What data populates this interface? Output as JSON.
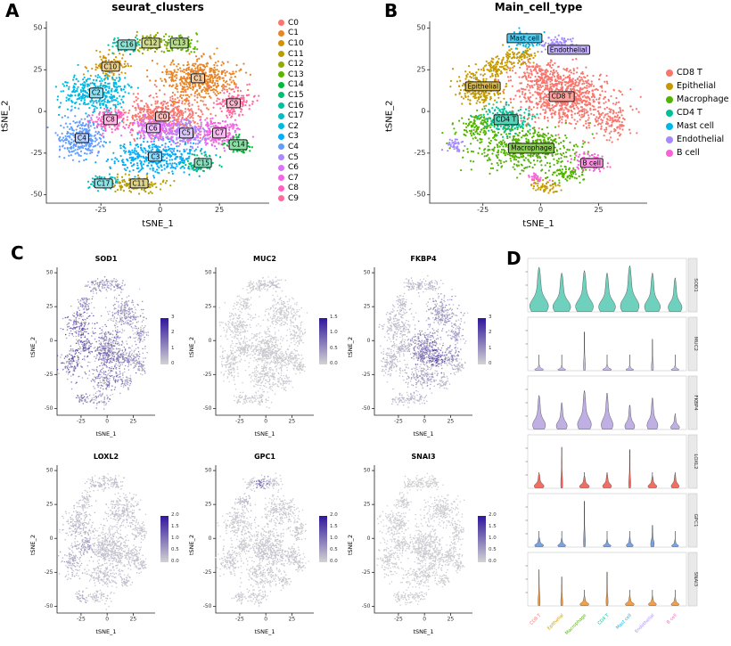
{
  "panel_labels": {
    "a": "A",
    "b": "B",
    "c": "C",
    "d": "D"
  },
  "chart_data": [
    {
      "id": "A",
      "type": "scatter",
      "title": "seurat_clusters",
      "xlabel": "tSNE_1",
      "ylabel": "tSNE_2",
      "xlim": [
        -48,
        46
      ],
      "ylim": [
        -55,
        54
      ],
      "xticks": [
        -25,
        0,
        25
      ],
      "yticks": [
        -50,
        -25,
        0,
        25,
        50
      ],
      "legend": [
        {
          "label": "C0",
          "color": "#F8766D"
        },
        {
          "label": "C1",
          "color": "#E88526"
        },
        {
          "label": "C10",
          "color": "#D39200"
        },
        {
          "label": "C11",
          "color": "#B79F00"
        },
        {
          "label": "C12",
          "color": "#93AA00"
        },
        {
          "label": "C13",
          "color": "#5EB300"
        },
        {
          "label": "C14",
          "color": "#00BA38"
        },
        {
          "label": "C15",
          "color": "#00BF74"
        },
        {
          "label": "C16",
          "color": "#00C19F"
        },
        {
          "label": "C17",
          "color": "#00BFC4"
        },
        {
          "label": "C2",
          "color": "#00B9E3"
        },
        {
          "label": "C3",
          "color": "#00ADFA"
        },
        {
          "label": "C4",
          "color": "#619CFF"
        },
        {
          "label": "C5",
          "color": "#AE87FF"
        },
        {
          "label": "C6",
          "color": "#DB72FB"
        },
        {
          "label": "C7",
          "color": "#F564E3"
        },
        {
          "label": "C8",
          "color": "#FF61C3"
        },
        {
          "label": "C9",
          "color": "#FF699C"
        }
      ],
      "clusters": [
        {
          "name": "C0",
          "color": "#F8766D",
          "cx": 1,
          "cy": -3,
          "sdx": 8,
          "sdy": 6,
          "n": 500
        },
        {
          "name": "C1",
          "color": "#E88526",
          "cx": 16,
          "cy": 20,
          "sdx": 8,
          "sdy": 6,
          "n": 500
        },
        {
          "name": "C2",
          "color": "#00B9E3",
          "cx": -27,
          "cy": 11,
          "sdx": 7,
          "sdy": 6,
          "n": 400
        },
        {
          "name": "C3",
          "color": "#00ADFA",
          "cx": -2,
          "cy": -27,
          "sdx": 9,
          "sdy": 5,
          "n": 400
        },
        {
          "name": "C4",
          "color": "#619CFF",
          "cx": -33,
          "cy": -16,
          "sdx": 5,
          "sdy": 6,
          "n": 300
        },
        {
          "name": "C5",
          "color": "#AE87FF",
          "cx": 11,
          "cy": -13,
          "sdx": 4.5,
          "sdy": 4,
          "n": 220
        },
        {
          "name": "C6",
          "color": "#DB72FB",
          "cx": -3,
          "cy": -10,
          "sdx": 4.5,
          "sdy": 3.5,
          "n": 220
        },
        {
          "name": "C7",
          "color": "#F564E3",
          "cx": 25,
          "cy": -13,
          "sdx": 4.5,
          "sdy": 4,
          "n": 220
        },
        {
          "name": "C8",
          "color": "#FF61C3",
          "cx": -21,
          "cy": -5,
          "sdx": 3.5,
          "sdy": 3,
          "n": 160
        },
        {
          "name": "C9",
          "color": "#FF699C",
          "cx": 31,
          "cy": 5,
          "sdx": 3.5,
          "sdy": 4,
          "n": 160
        },
        {
          "name": "C10",
          "color": "#D39200",
          "cx": -21,
          "cy": 27,
          "sdx": 3.5,
          "sdy": 3,
          "n": 130
        },
        {
          "name": "C11",
          "color": "#B79F00",
          "cx": -9,
          "cy": -43,
          "sdx": 6,
          "sdy": 2.5,
          "n": 140
        },
        {
          "name": "C12",
          "color": "#93AA00",
          "cx": -4,
          "cy": 41,
          "sdx": 3.5,
          "sdy": 2.5,
          "n": 110
        },
        {
          "name": "C13",
          "color": "#5EB300",
          "cx": 8,
          "cy": 41,
          "sdx": 4,
          "sdy": 2.5,
          "n": 110
        },
        {
          "name": "C14",
          "color": "#00BA38",
          "cx": 33,
          "cy": -20,
          "sdx": 2.5,
          "sdy": 2.5,
          "n": 90
        },
        {
          "name": "C15",
          "color": "#00BF74",
          "cx": 18,
          "cy": -31,
          "sdx": 3,
          "sdy": 2.5,
          "n": 90
        },
        {
          "name": "C16",
          "color": "#00C19F",
          "cx": -14,
          "cy": 40,
          "sdx": 3,
          "sdy": 2.2,
          "n": 80
        },
        {
          "name": "C17",
          "color": "#00BFC4",
          "cx": -24,
          "cy": -43,
          "sdx": 3,
          "sdy": 2,
          "n": 80
        }
      ]
    },
    {
      "id": "B",
      "type": "scatter",
      "title": "Main_cell_type",
      "xlabel": "tSNE_1",
      "ylabel": "tSNE_2",
      "xlim": [
        -48,
        46
      ],
      "ylim": [
        -55,
        54
      ],
      "xticks": [
        -25,
        0,
        25
      ],
      "yticks": [
        -50,
        -25,
        0,
        25,
        50
      ],
      "legend": [
        {
          "label": "CD8 T",
          "color": "#F8766D"
        },
        {
          "label": "Epithelial",
          "color": "#C49A00"
        },
        {
          "label": "Macrophage",
          "color": "#53B400"
        },
        {
          "label": "CD4 T",
          "color": "#00C094"
        },
        {
          "label": "Mast cell",
          "color": "#00B6EB"
        },
        {
          "label": "Endothelial",
          "color": "#A58AFF"
        },
        {
          "label": "B cell",
          "color": "#FB61D7"
        }
      ],
      "clusters": [
        {
          "name": "CD8 T",
          "color": "#F8766D",
          "cx": 10,
          "cy": 9,
          "sdx": 10,
          "sdy": 8,
          "n": 750
        },
        {
          "name": "CD8 T",
          "color": "#F8766D",
          "cx": 30,
          "cy": -6,
          "sdx": 4,
          "sdy": 5,
          "n": 120
        },
        {
          "name": "CD8 T",
          "color": "#F8766D",
          "cx": 0,
          "cy": 22,
          "sdx": 6,
          "sdy": 4,
          "n": 150
        },
        {
          "name": "Epithelial",
          "color": "#C49A00",
          "cx": -26,
          "cy": 14,
          "sdx": 5,
          "sdy": 5,
          "n": 260
        },
        {
          "name": "Epithelial",
          "color": "#C49A00",
          "cx": -9,
          "cy": 33,
          "sdx": 4,
          "sdy": 2.5,
          "n": 90
        },
        {
          "name": "Epithelial",
          "color": "#C49A00",
          "cx": -20,
          "cy": 27,
          "sdx": 3,
          "sdy": 2.5,
          "n": 80
        },
        {
          "name": "Epithelial",
          "color": "#C49A00",
          "cx": 2,
          "cy": -45,
          "sdx": 4,
          "sdy": 2,
          "n": 60
        },
        {
          "name": "Macrophage",
          "color": "#53B400",
          "cx": -6,
          "cy": -22,
          "sdx": 11,
          "sdy": 6,
          "n": 520
        },
        {
          "name": "Macrophage",
          "color": "#53B400",
          "cx": -27,
          "cy": -8,
          "sdx": 4,
          "sdy": 4,
          "n": 120
        },
        {
          "name": "Macrophage",
          "color": "#53B400",
          "cx": 12,
          "cy": -37,
          "sdx": 4,
          "sdy": 2.5,
          "n": 80
        },
        {
          "name": "CD4 T",
          "color": "#00C094",
          "cx": -15,
          "cy": -5,
          "sdx": 5,
          "sdy": 4,
          "n": 230
        },
        {
          "name": "Mast cell",
          "color": "#00B6EB",
          "cx": -7,
          "cy": 43,
          "sdx": 3.5,
          "sdy": 2.5,
          "n": 90
        },
        {
          "name": "Endothelial",
          "color": "#A58AFF",
          "cx": 8,
          "cy": 40,
          "sdx": 4,
          "sdy": 2.5,
          "n": 100
        },
        {
          "name": "Endothelial",
          "color": "#A58AFF",
          "cx": -37,
          "cy": -20,
          "sdx": 2,
          "sdy": 2,
          "n": 40
        },
        {
          "name": "B cell",
          "color": "#FB61D7",
          "cx": 22,
          "cy": -30,
          "sdx": 3.5,
          "sdy": 3,
          "n": 100
        },
        {
          "name": "B cell",
          "color": "#FB61D7",
          "cx": -2,
          "cy": -40,
          "sdx": 2,
          "sdy": 1.5,
          "n": 30
        }
      ],
      "labels": [
        {
          "text": "Mast cell",
          "x": -7,
          "y": 44,
          "color": "#00B6EB"
        },
        {
          "text": "Endothelial",
          "x": 12,
          "y": 37,
          "color": "#A58AFF"
        },
        {
          "text": "Epithelial",
          "x": -25,
          "y": 15,
          "color": "#C49A00"
        },
        {
          "text": "CD8 T",
          "x": 9,
          "y": 9,
          "color": "#F8766D"
        },
        {
          "text": "CD4 T",
          "x": -15,
          "y": -5,
          "color": "#00C094"
        },
        {
          "text": "Macrophage",
          "x": -4,
          "y": -22,
          "color": "#53B400"
        },
        {
          "text": "B cell",
          "x": 22,
          "y": -31,
          "color": "#FB61D7"
        }
      ]
    },
    {
      "id": "C",
      "type": "feature-grid",
      "xlabel": "tSNE_1",
      "ylabel": "tSNE_2",
      "xticks": [
        -25,
        0,
        25
      ],
      "yticks": [
        -50,
        -25,
        0,
        25,
        50
      ],
      "gradient_low": "#D3D3D3",
      "gradient_high": "#30169B",
      "genes": [
        {
          "name": "SOD1",
          "colorbar_ticks": [
            "3",
            "2",
            "1",
            "0"
          ],
          "expression": {
            "default": 0.35,
            "C0": 0.55,
            "C2": 0.75,
            "C3": 0.5,
            "C4": 0.75,
            "C5": 0.5,
            "C6": 0.55,
            "C8": 0.7,
            "C16": 0.45,
            "C17": 0.55,
            "C10": 0.45
          }
        },
        {
          "name": "MUC2",
          "colorbar_ticks": [
            "1.5",
            "1.0",
            "0.5",
            "0.0"
          ],
          "expression": {
            "default": 0.03,
            "C13": 0.08,
            "C12": 0.05
          }
        },
        {
          "name": "FKBP4",
          "colorbar_ticks": [
            "3",
            "2",
            "1",
            "0"
          ],
          "expression": {
            "default": 0.12,
            "C0": 0.45,
            "C5": 0.85,
            "C6": 0.5,
            "C1": 0.3,
            "C7": 0.4,
            "C3": 0.25,
            "C9": 0.3
          }
        },
        {
          "name": "LOXL2",
          "colorbar_ticks": [
            "2.0",
            "1.5",
            "1.0",
            "0.5",
            "0.0"
          ],
          "expression": {
            "default": 0.07,
            "C8": 0.28,
            "C4": 0.18,
            "C17": 0.22,
            "C2": 0.12
          }
        },
        {
          "name": "GPC1",
          "colorbar_ticks": [
            "2.0",
            "1.5",
            "1.0",
            "0.5",
            "0.0"
          ],
          "expression": {
            "default": 0.04,
            "C12": 0.6,
            "C10": 0.12
          }
        },
        {
          "name": "SNAI3",
          "colorbar_ticks": [
            "2.0",
            "1.5",
            "1.0",
            "0.5",
            "0.0"
          ],
          "expression": {
            "default": 0.02
          }
        }
      ]
    },
    {
      "id": "D",
      "type": "violin-stack",
      "categories": [
        "CD8 T",
        "Epithelial",
        "Macrophage",
        "CD4 T",
        "Mast cell",
        "Endothelial",
        "B cell"
      ],
      "category_colors": [
        "#F8766D",
        "#C49A00",
        "#53B400",
        "#00C094",
        "#00B6EB",
        "#A58AFF",
        "#FB61D7"
      ],
      "rows": [
        {
          "gene": "SOD1",
          "color": "#6FD1BD",
          "heights": [
            0.92,
            0.8,
            0.85,
            0.8,
            0.95,
            0.8,
            0.7
          ],
          "widths": [
            0.95,
            0.9,
            0.9,
            0.85,
            0.95,
            0.8,
            0.7
          ]
        },
        {
          "gene": "MUC2",
          "color": "#C9BCE8",
          "heights": [
            0.12,
            0.1,
            0.8,
            0.12,
            0.1,
            0.65,
            0.1
          ],
          "widths": [
            0.45,
            0.4,
            0.1,
            0.45,
            0.4,
            0.1,
            0.4
          ]
        },
        {
          "gene": "FKBP4",
          "color": "#BFAFE2",
          "heights": [
            0.7,
            0.55,
            0.8,
            0.75,
            0.5,
            0.65,
            0.3
          ],
          "widths": [
            0.65,
            0.55,
            0.7,
            0.6,
            0.5,
            0.55,
            0.45
          ]
        },
        {
          "gene": "LOXL2",
          "color": "#EF6F63",
          "heights": [
            0.3,
            0.85,
            0.25,
            0.3,
            0.8,
            0.25,
            0.3
          ],
          "widths": [
            0.5,
            0.1,
            0.5,
            0.45,
            0.1,
            0.45,
            0.4
          ]
        },
        {
          "gene": "GPC1",
          "color": "#7CA1DE",
          "heights": [
            0.2,
            0.18,
            0.95,
            0.15,
            0.2,
            0.45,
            0.15
          ],
          "widths": [
            0.45,
            0.4,
            0.09,
            0.4,
            0.35,
            0.18,
            0.35
          ]
        },
        {
          "gene": "SNAI3",
          "color": "#F0A04B",
          "heights": [
            0.75,
            0.6,
            0.2,
            0.7,
            0.2,
            0.2,
            0.18
          ],
          "widths": [
            0.1,
            0.1,
            0.45,
            0.1,
            0.45,
            0.4,
            0.4
          ]
        }
      ]
    }
  ]
}
